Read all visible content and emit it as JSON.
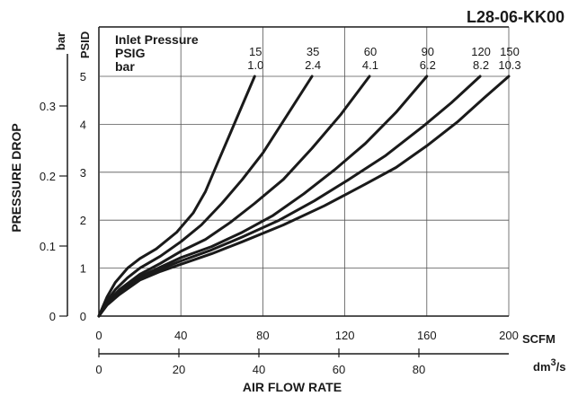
{
  "chart_data": {
    "type": "line",
    "title": "L28-06-KK00",
    "xlabel": "AIR FLOW RATE",
    "ylabel": "PRESSURE DROP",
    "x_primary_unit": "SCFM",
    "x_secondary_unit": "dm",
    "x_secondary_unit_sup": "3",
    "x_secondary_unit_tail": "/s",
    "y_primary_unit": "PSID",
    "y_secondary_unit": "bar",
    "xlim": [
      0,
      200
    ],
    "ylim": [
      0,
      5
    ],
    "grid": true,
    "x_ticks": [
      "0",
      "40",
      "80",
      "120",
      "160",
      "200"
    ],
    "y_ticks": [
      "0",
      "1",
      "2",
      "3",
      "4",
      "5"
    ],
    "x2_ticks": [
      {
        "value": 0,
        "label": "0"
      },
      {
        "value": 20,
        "label": "20"
      },
      {
        "value": 40,
        "label": "40"
      },
      {
        "value": 60,
        "label": "60"
      },
      {
        "value": 80,
        "label": "80"
      }
    ],
    "y2_ticks": [
      {
        "value": 0,
        "label": "0"
      },
      {
        "value": 0.1,
        "label": "0.1"
      },
      {
        "value": 0.2,
        "label": "0.2"
      },
      {
        "value": 0.3,
        "label": "0.3"
      }
    ],
    "legend_title": "Inlet Pressure",
    "legend_row_psig": "PSIG",
    "legend_row_bar": "bar",
    "series": [
      {
        "name": "15",
        "name_bar": "1.0",
        "x": [
          0,
          4,
          8,
          14,
          20,
          28,
          38,
          46,
          52,
          58,
          64,
          70,
          76
        ],
        "y": [
          0,
          0.4,
          0.7,
          1.0,
          1.2,
          1.4,
          1.75,
          2.15,
          2.6,
          3.2,
          3.8,
          4.4,
          5.0
        ]
      },
      {
        "name": "35",
        "name_bar": "2.4",
        "x": [
          0,
          4,
          8,
          14,
          20,
          30,
          40,
          50,
          60,
          70,
          80,
          92,
          104
        ],
        "y": [
          0,
          0.32,
          0.55,
          0.8,
          1.0,
          1.25,
          1.55,
          1.9,
          2.35,
          2.85,
          3.4,
          4.2,
          5.0
        ]
      },
      {
        "name": "60",
        "name_bar": "4.1",
        "x": [
          0,
          4,
          10,
          20,
          30,
          40,
          52,
          64,
          76,
          90,
          104,
          118,
          132
        ],
        "y": [
          0,
          0.28,
          0.55,
          0.87,
          1.1,
          1.35,
          1.6,
          1.95,
          2.35,
          2.85,
          3.5,
          4.2,
          5.0
        ]
      },
      {
        "name": "90",
        "name_bar": "6.2",
        "x": [
          0,
          4,
          10,
          20,
          30,
          40,
          55,
          70,
          85,
          100,
          115,
          130,
          145,
          160
        ],
        "y": [
          0,
          0.26,
          0.5,
          0.82,
          1.02,
          1.22,
          1.45,
          1.75,
          2.1,
          2.55,
          3.05,
          3.6,
          4.25,
          5.0
        ]
      },
      {
        "name": "120",
        "name_bar": "8.2",
        "x": [
          0,
          4,
          10,
          20,
          30,
          40,
          55,
          70,
          88,
          105,
          122,
          140,
          158,
          172,
          186
        ],
        "y": [
          0,
          0.25,
          0.48,
          0.78,
          0.98,
          1.15,
          1.38,
          1.65,
          2.0,
          2.4,
          2.85,
          3.35,
          3.95,
          4.45,
          5.0
        ]
      },
      {
        "name": "150",
        "name_bar": "10.3",
        "x": [
          0,
          4,
          10,
          20,
          30,
          40,
          55,
          70,
          90,
          110,
          130,
          145,
          160,
          175,
          188,
          200
        ],
        "y": [
          0,
          0.23,
          0.45,
          0.75,
          0.93,
          1.08,
          1.3,
          1.55,
          1.9,
          2.3,
          2.75,
          3.1,
          3.55,
          4.05,
          4.55,
          5.0
        ]
      }
    ]
  },
  "colors": {
    "ink": "#1a1a1a",
    "grid": "#555555",
    "background": "#ffffff"
  }
}
